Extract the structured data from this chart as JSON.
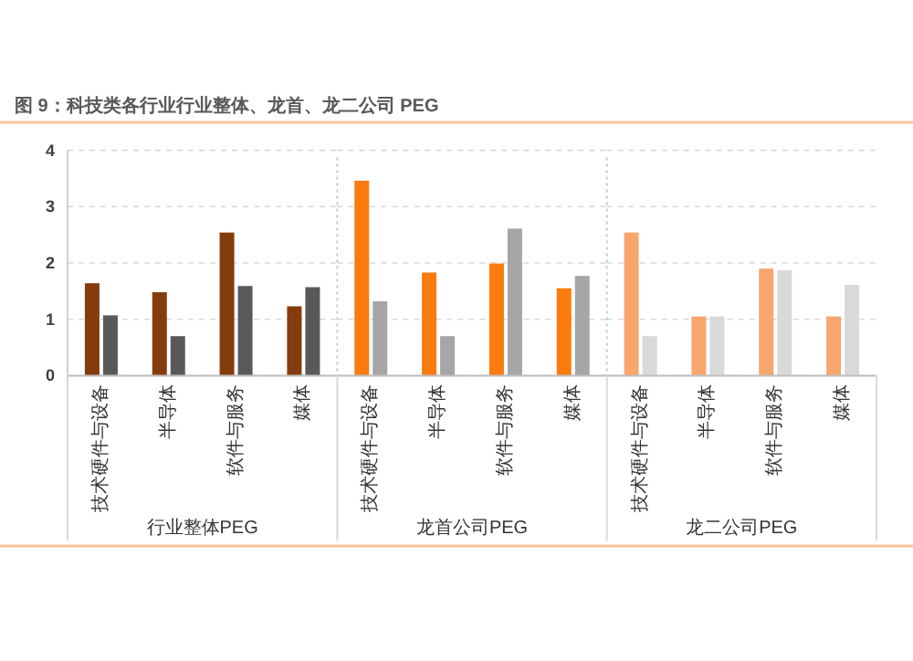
{
  "chart_data": [
    {
      "type": "bar",
      "title": "图 9：科技类各行业行业整体、龙首、龙二公司 PEG",
      "xlabel": "行业整体PEG",
      "categories": [
        "技术硬件与设备",
        "半导体",
        "软件与服务",
        "媒体"
      ],
      "series": [
        {
          "color": "#843c0c",
          "values": [
            1.64,
            1.48,
            2.54,
            1.23
          ]
        },
        {
          "color": "#595959",
          "values": [
            1.07,
            0.7,
            1.59,
            1.57
          ]
        }
      ],
      "ylim": [
        0,
        4
      ],
      "yticks": [
        0,
        1,
        2,
        3,
        4
      ],
      "grid": "y"
    },
    {
      "type": "bar",
      "xlabel": "龙首公司PEG",
      "categories": [
        "技术硬件与设备",
        "半导体",
        "软件与服务",
        "媒体"
      ],
      "series": [
        {
          "color": "#fb7b0f",
          "values": [
            3.46,
            1.83,
            1.99,
            1.55
          ]
        },
        {
          "color": "#a6a6a6",
          "values": [
            1.32,
            0.7,
            2.61,
            1.77
          ]
        }
      ],
      "ylim": [
        0,
        4
      ],
      "yticks": [
        0,
        1,
        2,
        3,
        4
      ],
      "grid": "y",
      "tick_labels": "x"
    },
    {
      "type": "bar",
      "xlabel": "龙二公司PEG",
      "categories": [
        "技术硬件与设备",
        "半导体",
        "软件与服务",
        "媒体"
      ],
      "series": [
        {
          "color": "#f8a56e",
          "values": [
            2.54,
            1.05,
            1.9,
            1.05
          ]
        },
        {
          "color": "#d9d9d9",
          "values": [
            0.7,
            1.05,
            1.87,
            1.61
          ]
        }
      ],
      "ylim": [
        0,
        4
      ],
      "yticks": [
        0,
        1,
        2,
        3,
        4
      ],
      "grid": "y",
      "tick_labels": "x"
    }
  ]
}
